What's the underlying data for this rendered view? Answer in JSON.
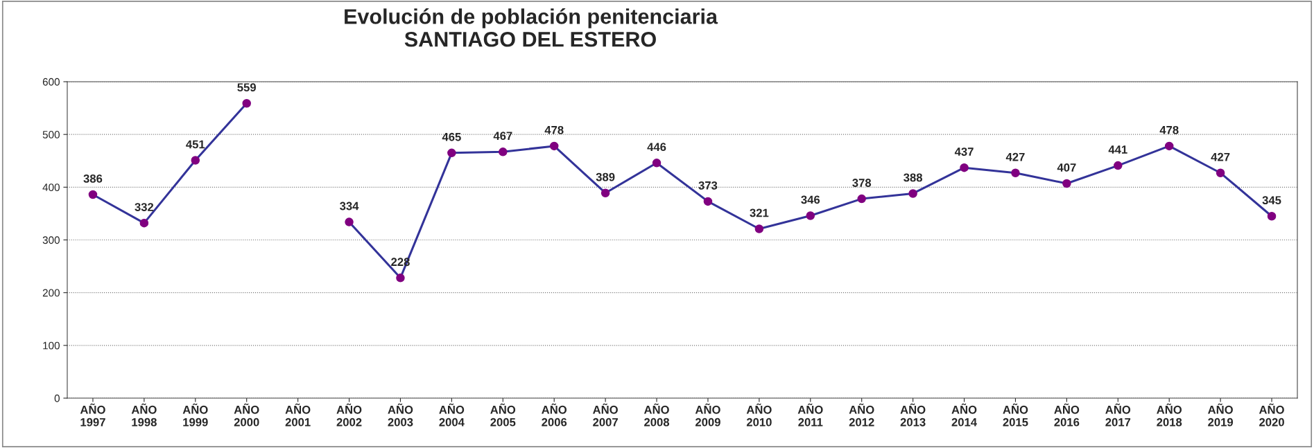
{
  "chart_data": {
    "type": "line",
    "title": "Evolución de población penitenciaria\nSANTIAGO DEL ESTERO",
    "categories": [
      "AÑO\n1997",
      "AÑO\n1998",
      "AÑO\n1999",
      "AÑO\n2000",
      "AÑO\n2001",
      "AÑO\n2002",
      "AÑO\n2003",
      "AÑO\n2004",
      "AÑO\n2005",
      "AÑO\n2006",
      "AÑO\n2007",
      "AÑO\n2008",
      "AÑO\n2009",
      "AÑO\n2010",
      "AÑO\n2011",
      "AÑO\n2012",
      "AÑO\n2013",
      "AÑO\n2014",
      "AÑO\n2015",
      "AÑO\n2016",
      "AÑO\n2017",
      "AÑO\n2018",
      "AÑO\n2019",
      "AÑO\n2020"
    ],
    "series": [
      {
        "color": "#333399",
        "values": [
          386,
          332,
          451,
          559,
          null,
          334,
          228,
          465,
          467,
          478,
          389,
          446,
          373,
          321,
          346,
          378,
          388,
          437,
          427,
          407,
          441,
          478,
          427,
          345
        ]
      }
    ],
    "ylim": [
      0,
      600
    ],
    "yticks": [
      0,
      100,
      200,
      300,
      400,
      500,
      600
    ],
    "grid": "y",
    "marker": "circle",
    "line_style": "solid",
    "data_labels": true,
    "legend": false
  }
}
